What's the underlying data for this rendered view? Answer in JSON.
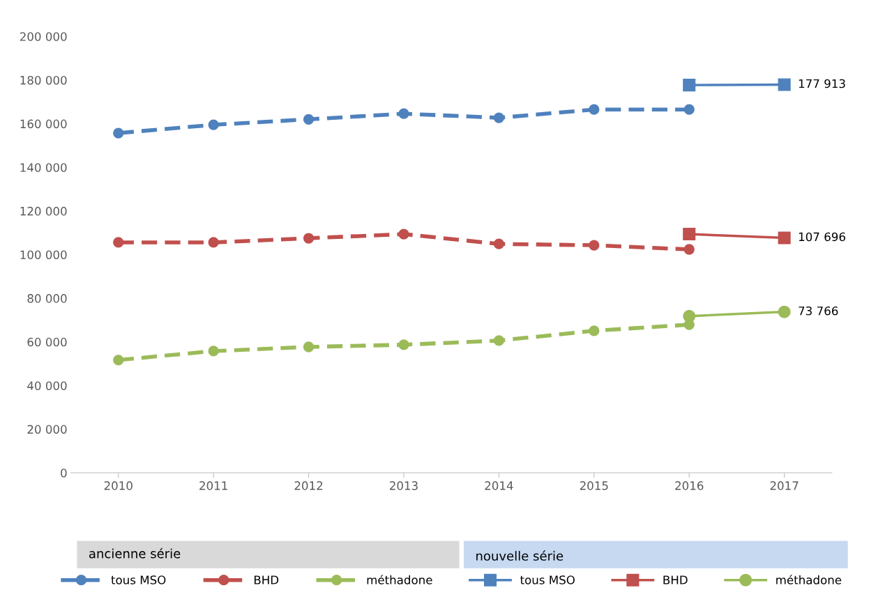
{
  "chart_data": {
    "type": "line",
    "categories": [
      "2010",
      "2011",
      "2012",
      "2013",
      "2014",
      "2015",
      "2016",
      "2017"
    ],
    "ylim": [
      0,
      200000
    ],
    "yticks": [
      {
        "value": 0,
        "label": "0"
      },
      {
        "value": 20000,
        "label": "20 000"
      },
      {
        "value": 40000,
        "label": "40 000"
      },
      {
        "value": 60000,
        "label": "60 000"
      },
      {
        "value": 80000,
        "label": "80 000"
      },
      {
        "value": 100000,
        "label": "100 000"
      },
      {
        "value": 120000,
        "label": "120 000"
      },
      {
        "value": 140000,
        "label": "140 000"
      },
      {
        "value": 160000,
        "label": "160 000"
      },
      {
        "value": 180000,
        "label": "180 000"
      },
      {
        "value": 200000,
        "label": "200 000"
      }
    ],
    "grid": false,
    "legend": "bottom",
    "annotations": [
      "ancienne série",
      "nouvelle série"
    ],
    "series": [
      {
        "name": "tous MSO",
        "color": "#4f81bd",
        "line_style": "dashed",
        "marker": "circle",
        "values": [
          155700,
          159500,
          162000,
          164600,
          162700,
          166500,
          166500,
          null
        ]
      },
      {
        "name": "BHD",
        "color": "#c0504d",
        "line_style": "dashed",
        "marker": "circle",
        "values": [
          105600,
          105600,
          107500,
          109400,
          104900,
          104300,
          102400,
          null
        ]
      },
      {
        "name": "méthadone",
        "color": "#9bbb59",
        "line_style": "dashed",
        "marker": "circle",
        "values": [
          51700,
          55800,
          57700,
          58700,
          60600,
          65100,
          67900,
          null
        ]
      },
      {
        "name": "tous MSO",
        "color": "#4f81bd",
        "line_style": "solid",
        "marker": "square",
        "values": [
          null,
          null,
          null,
          null,
          null,
          null,
          177700,
          177913
        ],
        "value_labels": [
          null,
          null,
          null,
          null,
          null,
          null,
          null,
          "177 913"
        ]
      },
      {
        "name": "BHD",
        "color": "#c0504d",
        "line_style": "solid",
        "marker": "square",
        "values": [
          null,
          null,
          null,
          null,
          null,
          null,
          109400,
          107696
        ],
        "value_labels": [
          null,
          null,
          null,
          null,
          null,
          null,
          null,
          "107 696"
        ]
      },
      {
        "name": "méthadone",
        "color": "#9bbb59",
        "line_style": "solid",
        "marker": "circle",
        "values": [
          null,
          null,
          null,
          null,
          null,
          null,
          71800,
          73766
        ],
        "value_labels": [
          null,
          null,
          null,
          null,
          null,
          null,
          null,
          "73 766"
        ]
      }
    ]
  }
}
